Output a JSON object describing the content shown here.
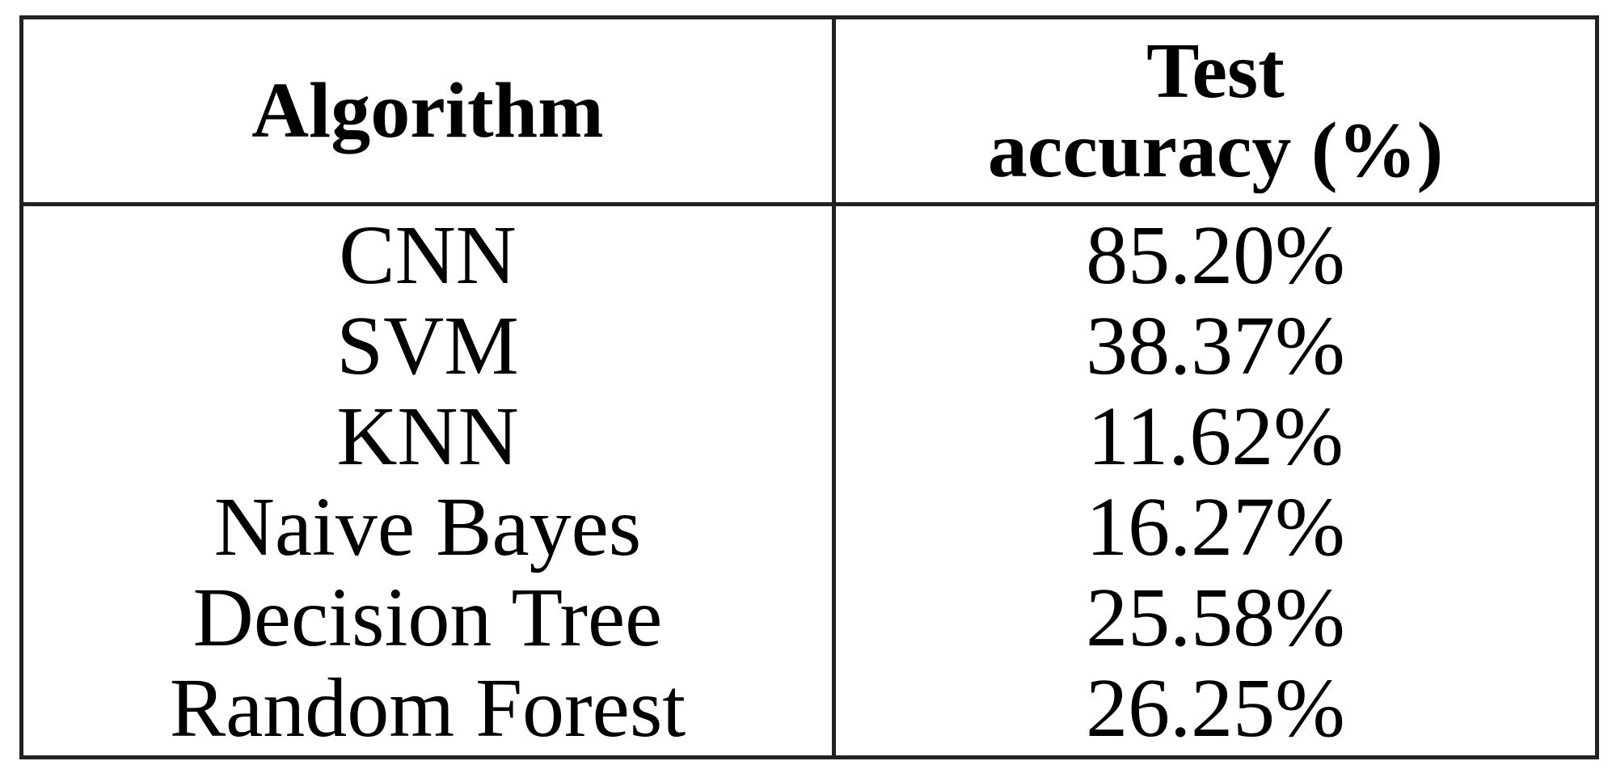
{
  "table": {
    "headers": {
      "algorithm": "Algorithm",
      "accuracy_line1": "Test",
      "accuracy_line2": "accuracy (%)"
    },
    "rows": [
      {
        "algorithm": "CNN",
        "accuracy": "85.20%"
      },
      {
        "algorithm": "SVM",
        "accuracy": "38.37%"
      },
      {
        "algorithm": "KNN",
        "accuracy": "11.62%"
      },
      {
        "algorithm": "Naive Bayes",
        "accuracy": "16.27%"
      },
      {
        "algorithm": "Decision Tree",
        "accuracy": "25.58%"
      },
      {
        "algorithm": "Random Forest",
        "accuracy": "26.25%"
      }
    ]
  }
}
